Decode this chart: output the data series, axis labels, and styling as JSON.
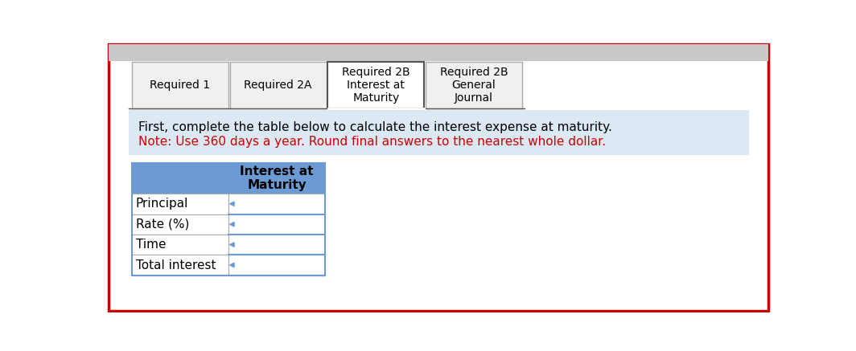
{
  "tab_labels": [
    "Required 1",
    "Required 2A",
    "Required 2B\nInterest at\nMaturity",
    "Required 2B\nGeneral\nJournal"
  ],
  "tab_active_index": 2,
  "info_text_line1": "First, complete the table below to calculate the interest expense at maturity.",
  "info_text_line2": "Note: Use 360 days a year. Round final answers to the nearest whole dollar.",
  "table_col_header": "Interest at\nMaturity",
  "table_rows": [
    "Principal",
    "Rate (%)",
    "Time",
    "Total interest"
  ],
  "bg_color": "#ffffff",
  "tab_active_color": "#ffffff",
  "tab_inactive_color": "#f0f0f0",
  "tab_border_color": "#aaaaaa",
  "info_bg_color": "#dce9f5",
  "info_text_color": "#000000",
  "info_note_color": "#cc0000",
  "table_header_bg": "#6b9bd2",
  "table_row_bg": "#ffffff",
  "table_border_color": "#6b9bd2",
  "outer_border_color": "#cc0000",
  "top_bar_color": "#c8c8c8",
  "font_size_tab": 10,
  "font_size_info": 11,
  "font_size_table": 11
}
